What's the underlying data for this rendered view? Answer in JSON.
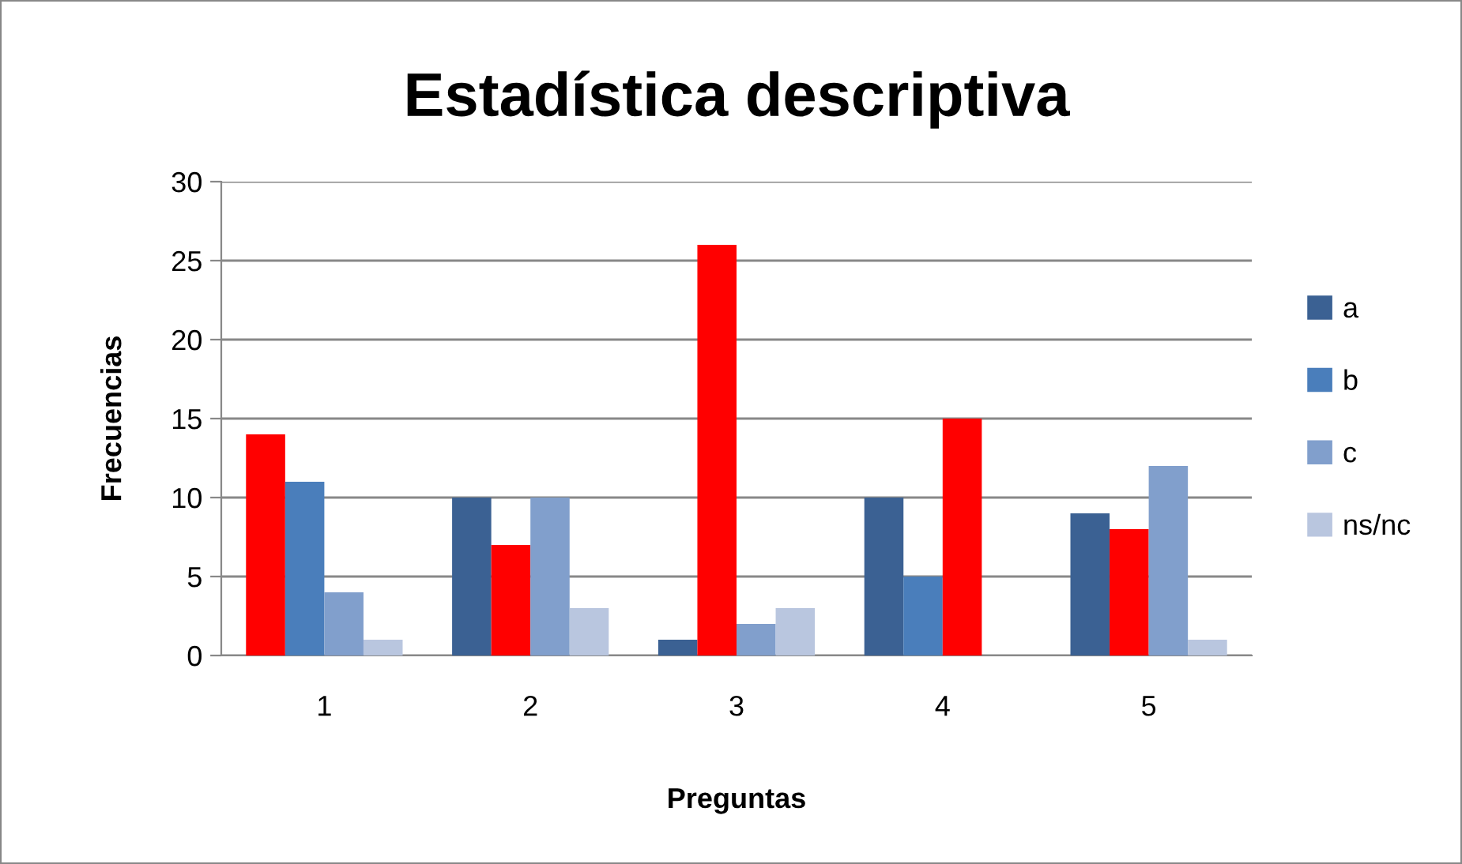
{
  "chart_data": {
    "type": "bar",
    "title": "Estadística descriptiva",
    "xlabel": "Preguntas",
    "ylabel": "Frecuencias",
    "categories": [
      "1",
      "2",
      "3",
      "4",
      "5"
    ],
    "series": [
      {
        "name": "a",
        "color": "#3b6193",
        "values": [
          14,
          10,
          1,
          10,
          9
        ],
        "colors": [
          "#ff0000",
          "#3b6193",
          "#3b6193",
          "#3b6193",
          "#3b6193"
        ]
      },
      {
        "name": "b",
        "color": "#4a7ebb",
        "values": [
          11,
          7,
          26,
          5,
          8
        ],
        "colors": [
          "#4a7ebb",
          "#ff0000",
          "#ff0000",
          "#4a7ebb",
          "#ff0000"
        ]
      },
      {
        "name": "c",
        "color": "#819fcc",
        "values": [
          4,
          10,
          2,
          15,
          12
        ],
        "colors": [
          "#819fcc",
          "#819fcc",
          "#819fcc",
          "#ff0000",
          "#819fcc"
        ]
      },
      {
        "name": "ns/nc",
        "color": "#b9c6df",
        "values": [
          1,
          3,
          3,
          0,
          1
        ],
        "colors": [
          "#b9c6df",
          "#b9c6df",
          "#b9c6df",
          "#b9c6df",
          "#b9c6df"
        ]
      }
    ],
    "ylim": [
      0,
      30
    ],
    "yticks": [
      0,
      5,
      10,
      15,
      20,
      25,
      30
    ],
    "grid": "y",
    "legend": "right"
  }
}
